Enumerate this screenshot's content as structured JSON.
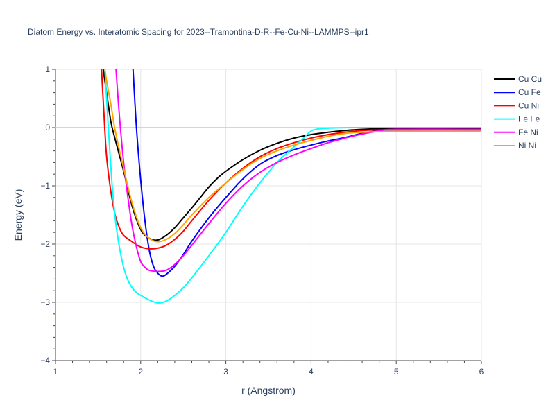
{
  "chart_data": {
    "type": "line",
    "title": "Diatom Energy vs. Interatomic Spacing for 2023--Tramontina-D-R--Fe-Cu-Ni--LAMMPS--ipr1",
    "xlabel": "r (Angstrom)",
    "ylabel": "Energy (eV)",
    "xlim": [
      1,
      6
    ],
    "ylim": [
      -4,
      1
    ],
    "xticks": [
      "1",
      "2",
      "3",
      "4",
      "5",
      "6"
    ],
    "yticks": [
      "1",
      "0",
      "−1",
      "−2",
      "−3",
      "−4"
    ],
    "grid": true,
    "legend_position": "top-right",
    "series": [
      {
        "name": "Cu Cu",
        "color": "#000000",
        "x": [
          1.56,
          1.6,
          1.65,
          1.7,
          1.8,
          1.9,
          2.0,
          2.1,
          2.2,
          2.3,
          2.4,
          2.5,
          2.6,
          2.7,
          2.8,
          2.9,
          3.0,
          3.2,
          3.4,
          3.6,
          3.8,
          4.0,
          4.2,
          4.4,
          4.6,
          4.8,
          5.0,
          6.0
        ],
        "y": [
          1.0,
          0.6,
          0.1,
          -0.2,
          -0.75,
          -1.35,
          -1.75,
          -1.9,
          -1.93,
          -1.85,
          -1.72,
          -1.55,
          -1.38,
          -1.2,
          -1.02,
          -0.87,
          -0.75,
          -0.55,
          -0.39,
          -0.27,
          -0.18,
          -0.12,
          -0.08,
          -0.05,
          -0.03,
          -0.02,
          -0.02,
          -0.02
        ]
      },
      {
        "name": "Cu Fe",
        "color": "#0000ff",
        "x": [
          1.91,
          1.95,
          2.0,
          2.05,
          2.1,
          2.15,
          2.2,
          2.25,
          2.3,
          2.4,
          2.5,
          2.6,
          2.8,
          3.0,
          3.2,
          3.4,
          3.6,
          3.8,
          4.0,
          4.2,
          4.4,
          4.6,
          4.8,
          5.0,
          6.0
        ],
        "y": [
          1.0,
          0.0,
          -0.9,
          -1.6,
          -2.1,
          -2.38,
          -2.5,
          -2.55,
          -2.52,
          -2.38,
          -2.18,
          -1.95,
          -1.55,
          -1.2,
          -0.88,
          -0.63,
          -0.48,
          -0.38,
          -0.3,
          -0.23,
          -0.17,
          -0.1,
          -0.05,
          -0.04,
          -0.04
        ]
      },
      {
        "name": "Cu Ni",
        "color": "#ff0000",
        "x": [
          1.54,
          1.57,
          1.6,
          1.65,
          1.7,
          1.75,
          1.8,
          1.9,
          2.0,
          2.1,
          2.2,
          2.3,
          2.4,
          2.5,
          2.6,
          2.8,
          3.0,
          3.2,
          3.4,
          3.6,
          3.8,
          4.0,
          4.2,
          4.4,
          4.6,
          4.8,
          5.0,
          6.0
        ],
        "y": [
          1.0,
          0.2,
          -0.5,
          -1.1,
          -1.5,
          -1.72,
          -1.85,
          -1.96,
          -2.05,
          -2.08,
          -2.07,
          -2.02,
          -1.92,
          -1.78,
          -1.6,
          -1.25,
          -0.95,
          -0.7,
          -0.5,
          -0.36,
          -0.26,
          -0.18,
          -0.12,
          -0.08,
          -0.05,
          -0.04,
          -0.04,
          -0.04
        ]
      },
      {
        "name": "Fe Fe",
        "color": "#00ffff",
        "x": [
          1.58,
          1.62,
          1.66,
          1.7,
          1.75,
          1.8,
          1.85,
          1.9,
          1.95,
          2.0,
          2.1,
          2.2,
          2.3,
          2.4,
          2.5,
          2.6,
          2.8,
          3.0,
          3.2,
          3.4,
          3.6,
          3.8,
          3.9,
          4.0,
          4.1,
          4.2,
          4.5,
          5.0,
          6.0
        ],
        "y": [
          1.0,
          0.0,
          -0.9,
          -1.55,
          -2.05,
          -2.4,
          -2.62,
          -2.75,
          -2.83,
          -2.88,
          -2.96,
          -3.01,
          -2.98,
          -2.88,
          -2.75,
          -2.58,
          -2.2,
          -1.8,
          -1.35,
          -0.95,
          -0.6,
          -0.33,
          -0.2,
          -0.06,
          -0.02,
          -0.01,
          0.0,
          0.0,
          0.0
        ]
      },
      {
        "name": "Fe Ni",
        "color": "#ff00ff",
        "x": [
          1.71,
          1.75,
          1.8,
          1.85,
          1.9,
          1.95,
          2.0,
          2.05,
          2.1,
          2.2,
          2.3,
          2.4,
          2.5,
          2.6,
          2.8,
          3.0,
          3.2,
          3.4,
          3.6,
          3.8,
          4.0,
          4.2,
          4.4,
          4.6,
          4.8,
          5.0,
          6.0
        ],
        "y": [
          1.0,
          0.2,
          -0.6,
          -1.2,
          -1.7,
          -2.05,
          -2.3,
          -2.4,
          -2.45,
          -2.47,
          -2.45,
          -2.35,
          -2.2,
          -2.02,
          -1.65,
          -1.3,
          -1.0,
          -0.77,
          -0.6,
          -0.47,
          -0.36,
          -0.26,
          -0.18,
          -0.11,
          -0.06,
          -0.03,
          -0.03
        ]
      },
      {
        "name": "Ni Ni",
        "color": "#ffa500",
        "x": [
          1.58,
          1.6,
          1.65,
          1.7,
          1.8,
          1.9,
          2.0,
          2.1,
          2.2,
          2.3,
          2.4,
          2.5,
          2.6,
          2.8,
          3.0,
          3.2,
          3.4,
          3.6,
          3.8,
          4.0,
          4.2,
          4.4,
          4.6,
          4.8,
          5.0,
          6.0
        ],
        "y": [
          1.0,
          0.8,
          0.4,
          -0.05,
          -0.7,
          -1.3,
          -1.72,
          -1.9,
          -1.96,
          -1.92,
          -1.82,
          -1.67,
          -1.5,
          -1.2,
          -0.95,
          -0.72,
          -0.53,
          -0.4,
          -0.3,
          -0.22,
          -0.15,
          -0.1,
          -0.08,
          -0.07,
          -0.07,
          -0.07
        ]
      }
    ]
  }
}
